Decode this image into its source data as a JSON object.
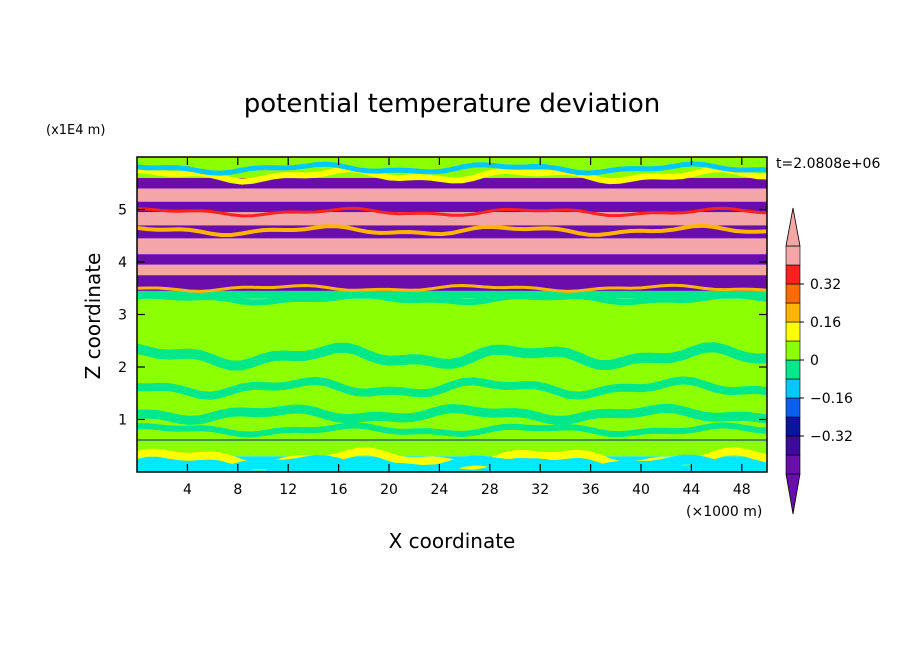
{
  "chart_data": {
    "type": "heatmap",
    "title": "potential temperature deviation",
    "time_label": "t=2.0808e+06",
    "xlabel": "X coordinate",
    "ylabel": "Z coordinate",
    "x_unit": "(×1000 m)",
    "y_unit": "(x1E4 m)",
    "xlim": [
      0,
      50
    ],
    "ylim": [
      0,
      6
    ],
    "x_ticks": [
      4,
      8,
      12,
      16,
      20,
      24,
      28,
      32,
      36,
      40,
      44,
      48
    ],
    "y_ticks": [
      1,
      2,
      3,
      4,
      5
    ],
    "colorbar": {
      "levels": [
        -0.48,
        -0.4,
        -0.32,
        -0.24,
        -0.16,
        -0.08,
        0,
        0.08,
        0.16,
        0.24,
        0.32,
        0.4,
        0.48
      ],
      "labeled_ticks": [
        "0.32",
        "0.16",
        "0",
        "−0.16",
        "−0.32"
      ],
      "labeled_values": [
        0.32,
        0.16,
        0,
        -0.16,
        -0.32
      ],
      "colors": [
        "#6a0dad",
        "#3c0a9c",
        "#0a14a0",
        "#0a5ff0",
        "#00c8ff",
        "#00e88a",
        "#8cff00",
        "#ffff00",
        "#ffb400",
        "#ff6a00",
        "#ff2020",
        "#f4a6a6"
      ],
      "extend": "both"
    },
    "bands": [
      {
        "z": [
          0.0,
          0.3
        ],
        "color": "#00e8ff"
      },
      {
        "z": [
          0.3,
          0.6
        ],
        "color": "#8cff00"
      },
      {
        "z": [
          0.6,
          0.62
        ],
        "color": "#0a14a0"
      },
      {
        "z": [
          0.62,
          1.0
        ],
        "color": "#8cff00"
      },
      {
        "z": [
          1.0,
          3.3
        ],
        "color": "#8cff00"
      },
      {
        "z": [
          3.3,
          3.45
        ],
        "color": "#00e88a"
      },
      {
        "z": [
          3.45,
          3.75
        ],
        "color": "#6a0dad"
      },
      {
        "z": [
          3.75,
          3.95
        ],
        "color": "#f4a6a6"
      },
      {
        "z": [
          3.95,
          4.15
        ],
        "color": "#6a0dad"
      },
      {
        "z": [
          4.15,
          4.45
        ],
        "color": "#f4a6a6"
      },
      {
        "z": [
          4.45,
          4.7
        ],
        "color": "#6a0dad"
      },
      {
        "z": [
          4.7,
          4.95
        ],
        "color": "#f4a6a6"
      },
      {
        "z": [
          4.95,
          5.15
        ],
        "color": "#6a0dad"
      },
      {
        "z": [
          5.15,
          5.4
        ],
        "color": "#f4a6a6"
      },
      {
        "z": [
          5.4,
          5.6
        ],
        "color": "#6a0dad"
      },
      {
        "z": [
          5.6,
          6.0
        ],
        "color": "#8cff00"
      }
    ]
  }
}
